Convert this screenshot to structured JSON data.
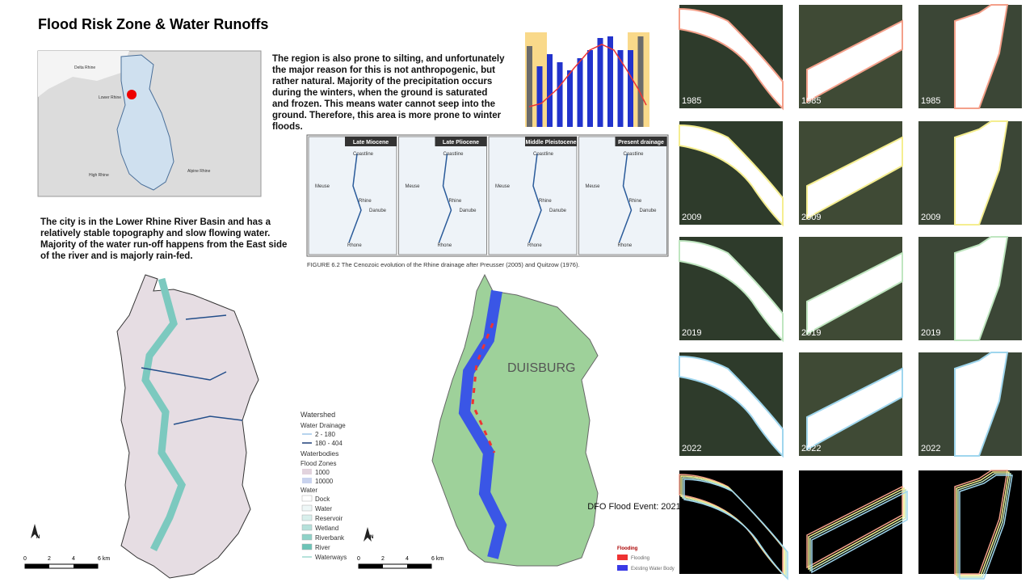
{
  "header": {
    "title": "Flood Risk Zone & Water Runoffs"
  },
  "paragraphs": [
    "The region is also prone to silting, and unfortunately the major reason for this is not anthropogenic, but rather natural.  Majority of the precipitation occurs during the winters, when the ground is saturated and frozen. This means water cannot seep into the ground. Therefore, this area is more prone to winter floods.",
    "The city is in the Lower Rhine River Basin and has a relatively stable topography and slow flowing water. Majority of the water run-off happens from the East side of the river and is majorly rain-fed."
  ],
  "basin_map": {
    "labels": [
      "Delta Rhine",
      "Lower Rhine",
      "High Rhine",
      "Alpine Rhine"
    ]
  },
  "evolution_figure": {
    "panels": [
      "Late Miocene",
      "Late Pliocene",
      "Middle Pleistocene",
      "Present drainage"
    ],
    "labels": [
      "Coastline",
      "Meuse",
      "Rhine",
      "Danube",
      "Rhone"
    ],
    "caption": "FIGURE 6.2   The Cenozoic evolution of the Rhine drainage after Preusser (2005) and Quitzow (1976)."
  },
  "watershed_legend": {
    "title": "Watershed",
    "drainage_title": "Water Drainage",
    "drainage": [
      "2 - 180",
      "180 - 404"
    ],
    "waterbodies_title": "Waterbodies",
    "flood_zones_title": "Flood Zones",
    "flood_zones": [
      "1000",
      "10000"
    ],
    "water_title": "Water",
    "water": [
      "Dock",
      "Water",
      "Reservoir",
      "Wetland",
      "Riverbank",
      "River",
      "Waterways"
    ]
  },
  "scale_bar": {
    "labels": [
      "0",
      "2",
      "4",
      "6 km"
    ],
    "north": "N"
  },
  "flood_map": {
    "city": "DUISBURG",
    "event": "DFO Flood Event: 2021",
    "legend_title": "Flooding",
    "legend": [
      "Flooding",
      "Existing Water Body"
    ]
  },
  "timeline": {
    "years": [
      "1985",
      "2009",
      "2019",
      "2022"
    ]
  }
}
